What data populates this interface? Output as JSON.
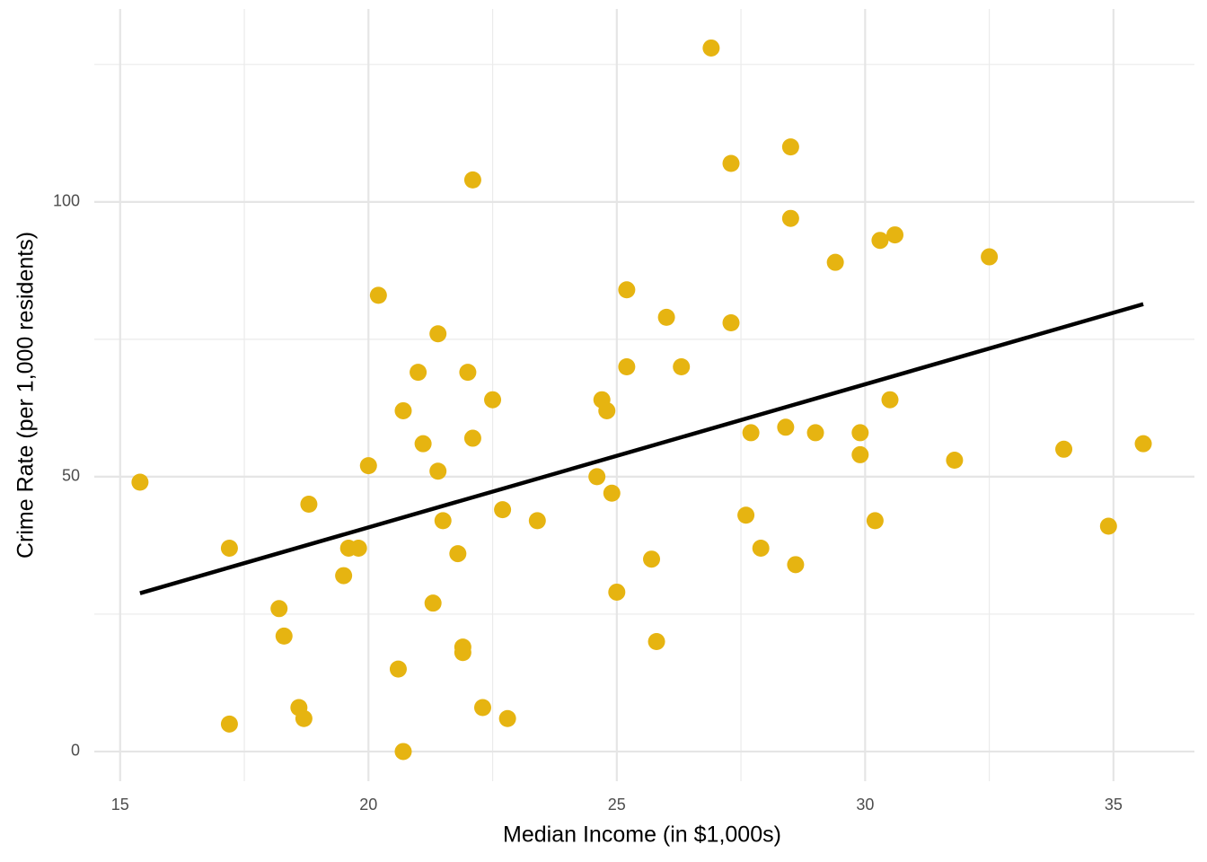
{
  "chart_data": {
    "type": "scatter",
    "x_label": "Median Income (in $1,000s)",
    "y_label": "Crime Rate (per 1,000 residents)",
    "x": [
      15.4,
      17.2,
      17.2,
      18.2,
      18.3,
      18.6,
      18.7,
      18.8,
      19.5,
      19.6,
      19.8,
      20.0,
      20.2,
      20.6,
      20.7,
      20.7,
      21.0,
      21.1,
      21.3,
      21.4,
      21.4,
      21.5,
      21.8,
      21.9,
      21.9,
      22.0,
      22.1,
      22.1,
      22.3,
      22.5,
      22.7,
      22.8,
      23.4,
      24.6,
      24.7,
      24.8,
      24.9,
      25.0,
      25.2,
      25.2,
      25.7,
      25.8,
      26.0,
      26.3,
      26.9,
      27.3,
      27.3,
      27.6,
      27.7,
      27.9,
      28.4,
      28.5,
      28.5,
      28.6,
      29.0,
      29.4,
      29.9,
      29.9,
      30.2,
      30.3,
      30.5,
      30.6,
      31.8,
      32.5,
      34.0,
      34.9,
      35.6
    ],
    "values": [
      49,
      5,
      37,
      26,
      21,
      8,
      6,
      45,
      32,
      37,
      37,
      52,
      83,
      15,
      0,
      62,
      69,
      56,
      27,
      76,
      51,
      42,
      36,
      19,
      18,
      69,
      104,
      57,
      8,
      64,
      44,
      6,
      42,
      50,
      64,
      62,
      47,
      29,
      84,
      70,
      35,
      20,
      79,
      70,
      128,
      107,
      78,
      43,
      58,
      37,
      59,
      110,
      97,
      34,
      58,
      89,
      58,
      54,
      42,
      93,
      64,
      94,
      53,
      90,
      55,
      41,
      56
    ],
    "color": "#e6b411",
    "trend_line": {
      "x": [
        15.4,
        35.6
      ],
      "y": [
        28.8,
        81.4
      ],
      "color": "#000000"
    },
    "xlim": [
      14.48,
      36.63
    ],
    "ylim": [
      -5.4,
      135.1
    ],
    "xticks": [
      15,
      20,
      25,
      30,
      35
    ],
    "yticks": [
      0,
      50,
      100
    ],
    "x_minor_ticks": [
      17.5,
      22.5,
      27.5,
      32.5
    ],
    "y_minor_ticks": [
      25,
      75,
      125
    ],
    "grid": true
  }
}
